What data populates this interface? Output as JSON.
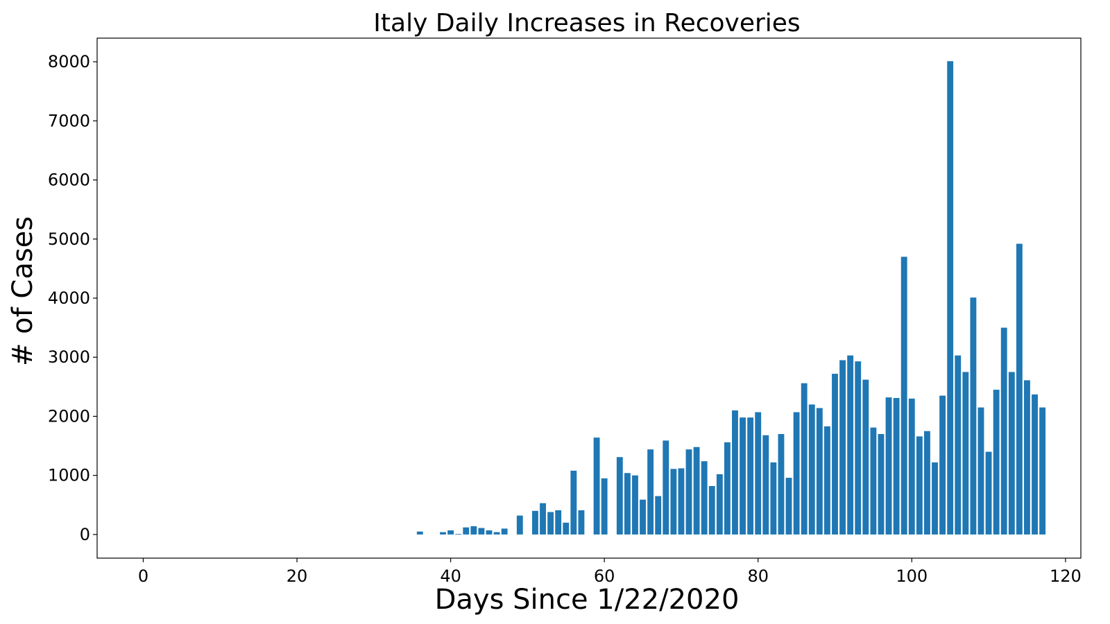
{
  "chart_data": {
    "type": "bar",
    "title": "Italy Daily Increases in Recoveries",
    "xlabel": "Days Since 1/22/2020",
    "ylabel": "# of Cases",
    "xlim": [
      -6,
      122
    ],
    "ylim": [
      -400,
      8400
    ],
    "xticks": [
      0,
      20,
      40,
      60,
      80,
      100,
      120
    ],
    "yticks": [
      0,
      1000,
      2000,
      3000,
      4000,
      5000,
      6000,
      7000,
      8000
    ],
    "bar_color": "#1f77b4",
    "grid": false,
    "x": [
      0,
      1,
      2,
      3,
      4,
      5,
      6,
      7,
      8,
      9,
      10,
      11,
      12,
      13,
      14,
      15,
      16,
      17,
      18,
      19,
      20,
      21,
      22,
      23,
      24,
      25,
      26,
      27,
      28,
      29,
      30,
      31,
      32,
      33,
      34,
      35,
      36,
      37,
      38,
      39,
      40,
      41,
      42,
      43,
      44,
      45,
      46,
      47,
      48,
      49,
      50,
      51,
      52,
      53,
      54,
      55,
      56,
      57,
      58,
      59,
      60,
      61,
      62,
      63,
      64,
      65,
      66,
      67,
      68,
      69,
      70,
      71,
      72,
      73,
      74,
      75,
      76,
      77,
      78,
      79,
      80,
      81,
      82,
      83,
      84,
      85,
      86,
      87,
      88,
      89,
      90,
      91,
      92,
      93,
      94,
      95,
      96,
      97,
      98,
      99,
      100,
      101,
      102,
      103,
      104,
      105,
      106,
      107,
      108,
      109,
      110,
      111,
      112,
      113,
      114,
      115,
      116,
      117
    ],
    "values": [
      0,
      0,
      0,
      0,
      0,
      0,
      0,
      0,
      0,
      0,
      0,
      0,
      0,
      0,
      0,
      0,
      0,
      0,
      0,
      0,
      0,
      0,
      0,
      0,
      0,
      0,
      0,
      0,
      0,
      0,
      0,
      0,
      0,
      0,
      0,
      0,
      50,
      0,
      0,
      40,
      70,
      10,
      120,
      140,
      110,
      70,
      40,
      100,
      0,
      320,
      0,
      400,
      530,
      380,
      410,
      200,
      1080,
      410,
      0,
      1640,
      950,
      0,
      1310,
      1040,
      1000,
      590,
      1440,
      650,
      1590,
      1110,
      1120,
      1440,
      1480,
      1240,
      820,
      1020,
      1560,
      2100,
      1980,
      1980,
      2070,
      1680,
      1220,
      1700,
      960,
      2070,
      2560,
      2200,
      2140,
      1830,
      2720,
      2950,
      3030,
      2930,
      2620,
      1810,
      1700,
      2320,
      2310,
      4700,
      2300,
      1660,
      1750,
      1220,
      2350,
      8010,
      3030,
      2750,
      4010,
      2150,
      1400,
      2450,
      3500,
      2750,
      4920,
      2610,
      2370,
      2150
    ]
  }
}
